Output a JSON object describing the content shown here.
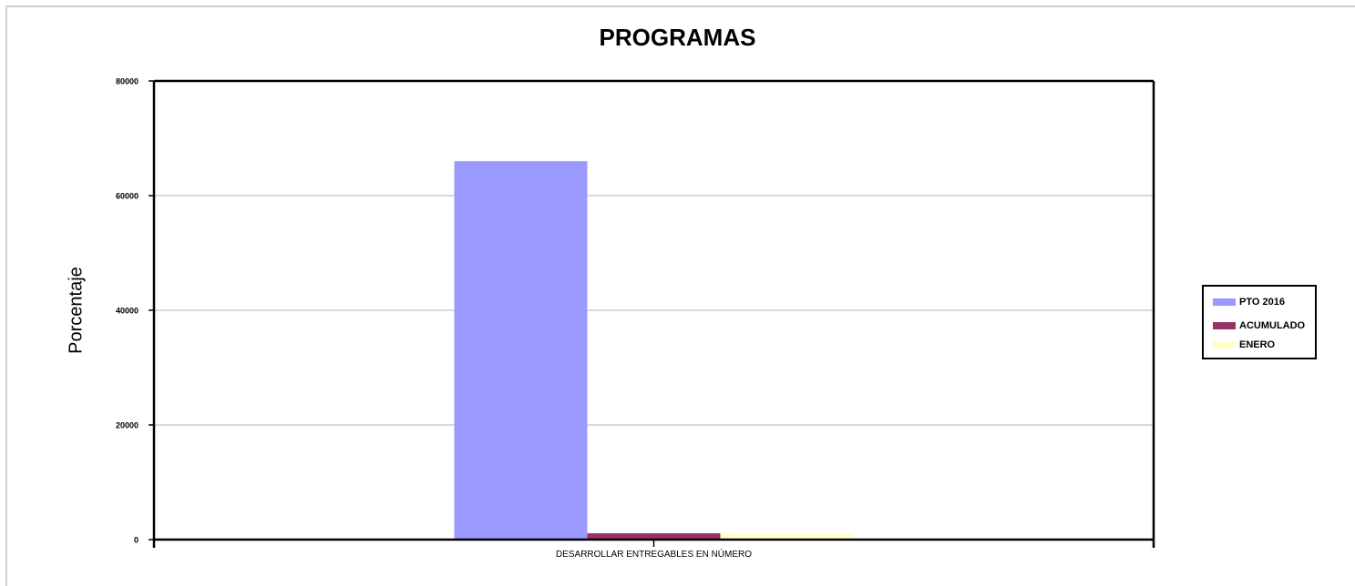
{
  "chart_data": {
    "type": "bar",
    "title": "PROGRAMAS",
    "xlabel": "",
    "ylabel": "Porcentaje",
    "categories": [
      "DESARROLLAR ENTREGABLES EN NÚMERO"
    ],
    "series": [
      {
        "name": "PTO 2016",
        "values": [
          66000
        ],
        "color": "#9999ff"
      },
      {
        "name": "ACUMULADO",
        "values": [
          1100
        ],
        "color": "#993366"
      },
      {
        "name": "ENERO",
        "values": [
          1100
        ],
        "color": "#ffffcc"
      }
    ],
    "ylim": [
      0,
      80000
    ],
    "yticks": [
      0,
      20000,
      40000,
      60000,
      80000
    ],
    "grid": true,
    "legend_position": "right"
  }
}
